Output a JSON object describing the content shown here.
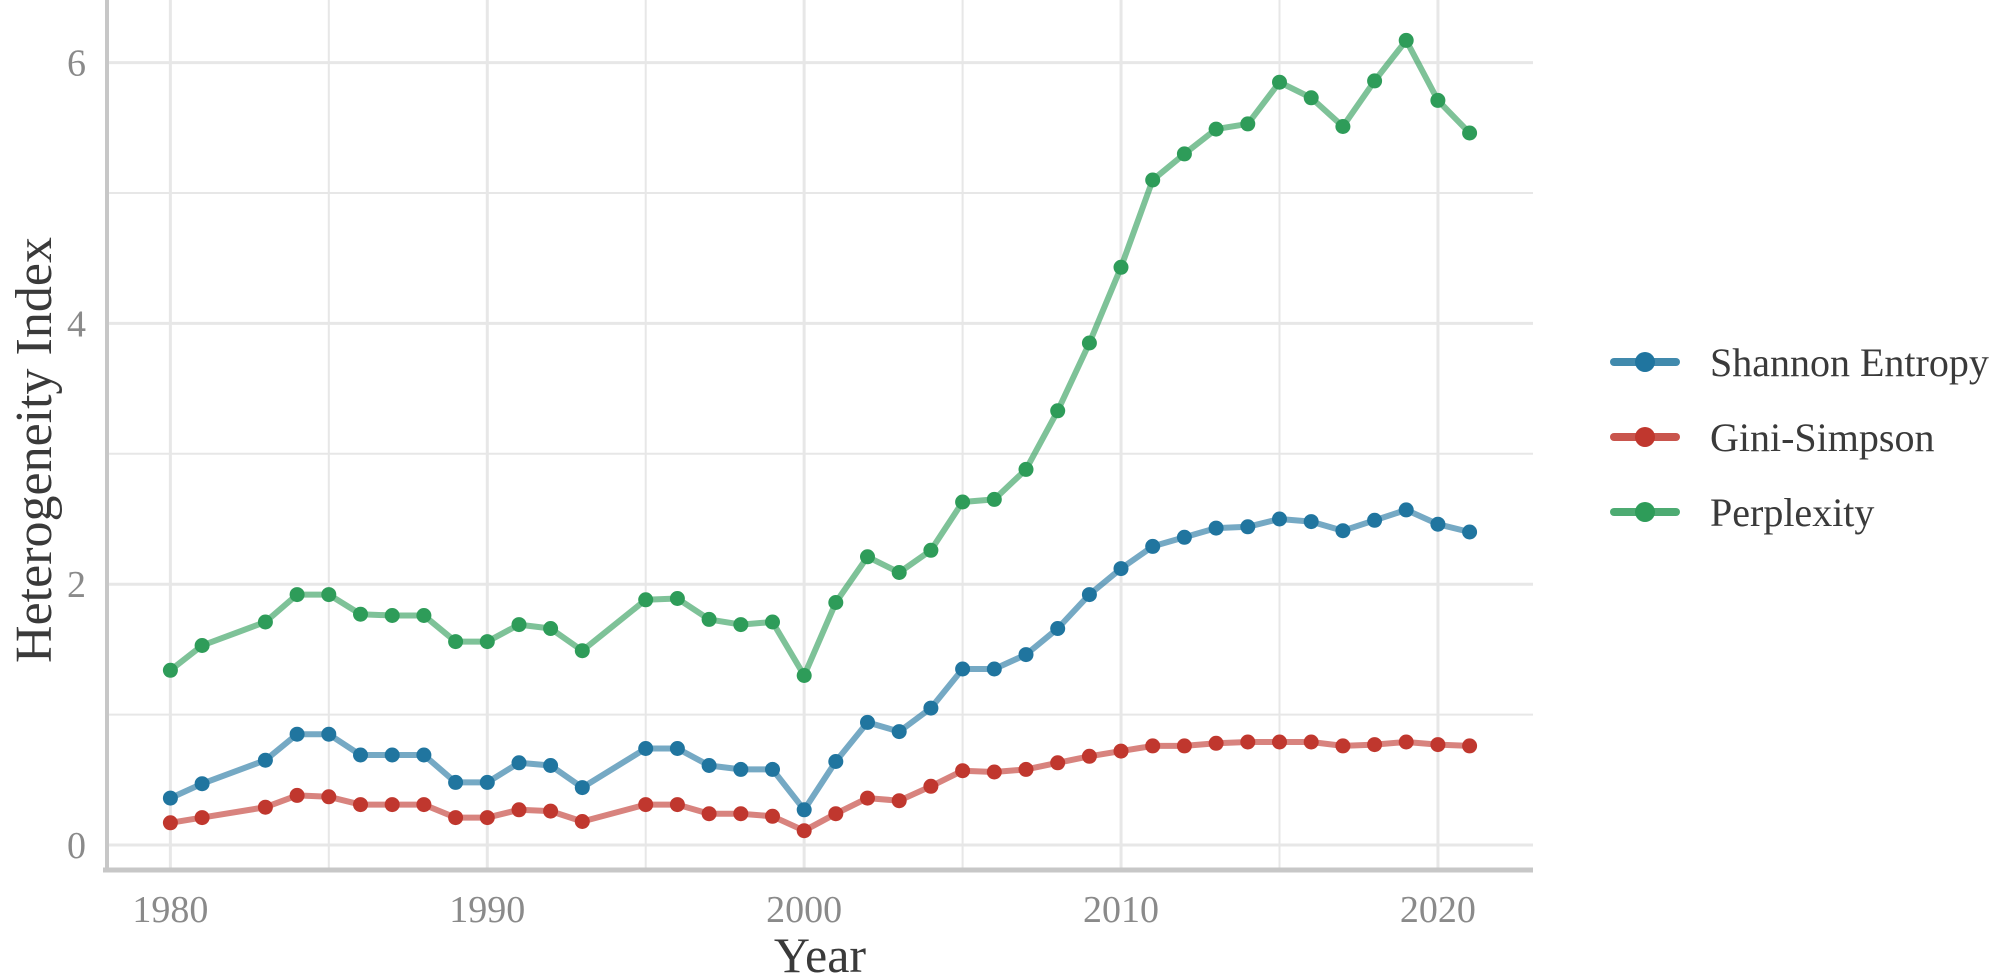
{
  "figure": {
    "x_axis_title": "Year",
    "y_axis_title": "Heterogeneity Index",
    "background_color": "#ffffff",
    "grid_color": "#e7e7e7",
    "axis_line_color": "#c7c7c7",
    "tick_label_color": "#8a8a8a",
    "title_text_color": "#3a3a3a"
  },
  "legend": {
    "position": "right",
    "items": [
      {
        "label": "Shannon Entropy",
        "color": "#20759F"
      },
      {
        "label": "Gini-Simpson",
        "color": "#C0372E"
      },
      {
        "label": "Perplexity",
        "color": "#2E9C59"
      }
    ]
  },
  "chart_data": {
    "type": "line",
    "title": "",
    "xlabel": "Year",
    "ylabel": "Heterogeneity Index",
    "xlim": [
      1978,
      2023
    ],
    "ylim": [
      -0.19,
      6.48
    ],
    "grid": true,
    "legend_position": "right",
    "marker": "circle",
    "missing_years": [
      1982,
      1994
    ],
    "x": [
      1980,
      1981,
      1982,
      1983,
      1984,
      1985,
      1986,
      1987,
      1988,
      1989,
      1990,
      1991,
      1992,
      1993,
      1994,
      1995,
      1996,
      1997,
      1998,
      1999,
      2000,
      2001,
      2002,
      2003,
      2004,
      2005,
      2006,
      2007,
      2008,
      2009,
      2010,
      2011,
      2012,
      2013,
      2014,
      2015,
      2016,
      2017,
      2018,
      2019,
      2020,
      2021
    ],
    "series": [
      {
        "name": "Shannon Entropy",
        "color": "#20759F",
        "values": [
          0.36,
          0.47,
          null,
          0.65,
          0.85,
          0.85,
          0.69,
          0.69,
          0.69,
          0.48,
          0.48,
          0.63,
          0.61,
          0.44,
          null,
          0.74,
          0.74,
          0.61,
          0.58,
          0.58,
          0.27,
          0.64,
          0.94,
          0.87,
          1.05,
          1.35,
          1.35,
          1.46,
          1.66,
          1.92,
          2.12,
          2.29,
          2.36,
          2.43,
          2.44,
          2.5,
          2.48,
          2.41,
          2.49,
          2.57,
          2.46,
          2.4
        ]
      },
      {
        "name": "Gini-Simpson",
        "color": "#C0372E",
        "values": [
          0.17,
          0.21,
          null,
          0.29,
          0.38,
          0.37,
          0.31,
          0.31,
          0.31,
          0.21,
          0.21,
          0.27,
          0.26,
          0.18,
          null,
          0.31,
          0.31,
          0.24,
          0.24,
          0.22,
          0.11,
          0.24,
          0.36,
          0.34,
          0.45,
          0.57,
          0.56,
          0.58,
          0.63,
          0.68,
          0.72,
          0.76,
          0.76,
          0.78,
          0.79,
          0.79,
          0.79,
          0.76,
          0.77,
          0.79,
          0.77,
          0.76
        ]
      },
      {
        "name": "Perplexity",
        "color": "#2E9C59",
        "values": [
          1.34,
          1.53,
          null,
          1.71,
          1.92,
          1.92,
          1.77,
          1.76,
          1.76,
          1.56,
          1.56,
          1.69,
          1.66,
          1.49,
          null,
          1.88,
          1.89,
          1.73,
          1.69,
          1.71,
          1.3,
          1.86,
          2.21,
          2.09,
          2.26,
          2.63,
          2.65,
          2.88,
          3.33,
          3.85,
          4.43,
          5.1,
          5.3,
          5.49,
          5.53,
          5.85,
          5.73,
          5.51,
          5.86,
          6.17,
          5.71,
          5.46
        ]
      }
    ],
    "x_ticks": [
      {
        "value": 1980,
        "label": "1980"
      },
      {
        "value": 1990,
        "label": "1990"
      },
      {
        "value": 2000,
        "label": "2000"
      },
      {
        "value": 2010,
        "label": "2010"
      },
      {
        "value": 2020,
        "label": "2020"
      }
    ],
    "y_ticks": [
      {
        "value": 0,
        "label": "0"
      },
      {
        "value": 2,
        "label": "2"
      },
      {
        "value": 4,
        "label": "4"
      },
      {
        "value": 6,
        "label": "6"
      }
    ],
    "x_gridlines": [
      1980,
      1985,
      1990,
      1995,
      2000,
      2005,
      2010,
      2015,
      2020
    ],
    "y_gridlines": [
      0,
      1,
      2,
      3,
      4,
      5,
      6
    ]
  }
}
